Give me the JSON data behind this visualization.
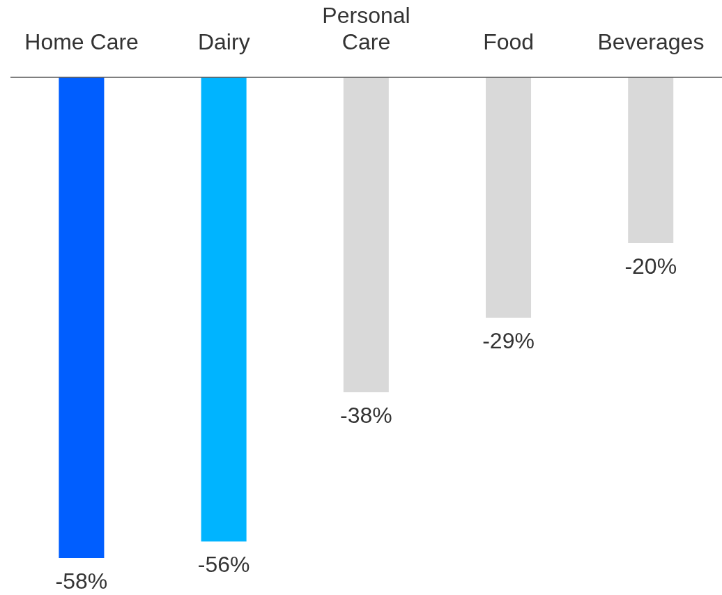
{
  "chart_data": {
    "type": "bar",
    "categories": [
      "Home Care",
      "Dairy",
      "Personal Care",
      "Food",
      "Beverages"
    ],
    "values": [
      -58,
      -56,
      -38,
      -29,
      -20
    ],
    "colors": [
      "#005eff",
      "#00b4ff",
      "#d9d9d9",
      "#d9d9d9",
      "#d9d9d9"
    ],
    "value_labels": [
      "-58%",
      "-56%",
      "-38%",
      "-29%",
      "-20%"
    ],
    "tick_labels": "x"
  }
}
